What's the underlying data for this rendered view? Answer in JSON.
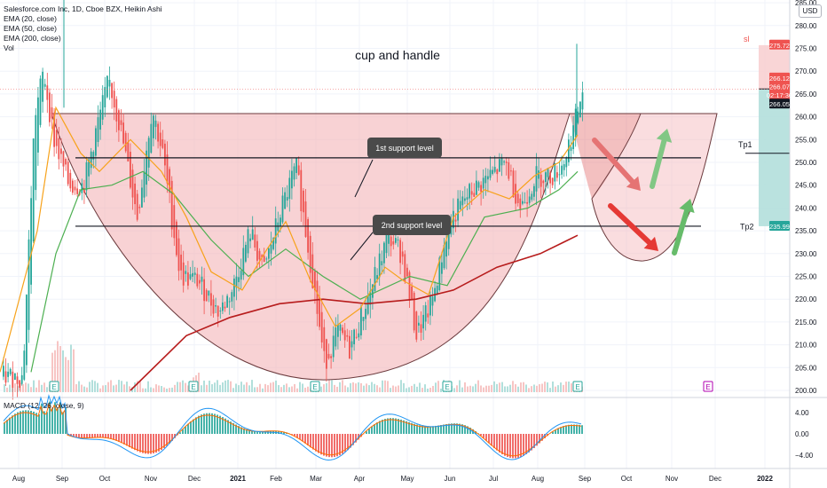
{
  "header": {
    "symbol_line": "Salesforce.com Inc, 1D, Cboe BZX, Heikin Ashi",
    "indicators": [
      "EMA (20, close)",
      "EMA (50, close)",
      "EMA (200, close)",
      "Vol"
    ],
    "currency_button": "USD"
  },
  "annotations": {
    "title": "cup and handle",
    "support1": "1st support level",
    "support2": "2nd support level",
    "sl": "sl",
    "tp1": "Tp1",
    "tp2": "Tp2",
    "earnings_marker": "E"
  },
  "price_tags": {
    "sl": "275.72",
    "last_a": "266.12",
    "last_b": "266.07",
    "countdown": "02:17:36",
    "ema": "266.05",
    "tp2": "235.99"
  },
  "macd": {
    "label": "MACD (12, 26, close, 9)",
    "axis_ticks": [
      "4.00",
      "0.00",
      "−4.00"
    ]
  },
  "colors": {
    "bull": "#26a69a",
    "bear": "#ef5350",
    "ema20": "#f7a21b",
    "ema50": "#4caf50",
    "ema200": "#b71c1c",
    "macd_line": "#2196f3",
    "signal_line": "#ff6d00",
    "cup_fill": "#f4b4b8",
    "profit_zone": "#b2dfdb",
    "loss_zone": "#f8d0d2"
  },
  "chart_data": {
    "type": "candlestick",
    "price_axis": {
      "ylim": [
        200,
        300
      ],
      "ticks": [
        200,
        205,
        210,
        215,
        220,
        225,
        230,
        235,
        240,
        245,
        250,
        255,
        260,
        265,
        270,
        275,
        280,
        285,
        290,
        295,
        300
      ]
    },
    "time_axis": {
      "labels": [
        "Aug",
        "Sep",
        "Oct",
        "Nov",
        "Dec",
        "2021",
        "Feb",
        "Mar",
        "Apr",
        "May",
        "Jun",
        "Jul",
        "Aug",
        "Sep",
        "Oct",
        "Nov",
        "Dec",
        "2022"
      ]
    },
    "levels": {
      "resistance": 272,
      "support_1": 251,
      "support_2": 236,
      "tp1": 252,
      "tp2": 236
    },
    "close_path": [
      {
        "x": "Aug 5, 2020",
        "y": 203
      },
      {
        "x": "Aug 18, 2020",
        "y": 203
      },
      {
        "x": "Aug 26, 2020",
        "y": 260
      },
      {
        "x": "Sep 1, 2020",
        "y": 270
      },
      {
        "x": "Sep 8, 2020",
        "y": 255
      },
      {
        "x": "Sep 18, 2020",
        "y": 245
      },
      {
        "x": "Sep 28, 2020",
        "y": 245
      },
      {
        "x": "Oct 7, 2020",
        "y": 258
      },
      {
        "x": "Oct 15, 2020",
        "y": 268
      },
      {
        "x": "Oct 23, 2020",
        "y": 257
      },
      {
        "x": "Nov 3, 2020",
        "y": 238
      },
      {
        "x": "Nov 13, 2020",
        "y": 262
      },
      {
        "x": "Nov 20, 2020",
        "y": 252
      },
      {
        "x": "Dec 2, 2020",
        "y": 225
      },
      {
        "x": "Dec 14, 2020",
        "y": 224
      },
      {
        "x": "Dec 28, 2020",
        "y": 217
      },
      {
        "x": "Jan 6, 2021",
        "y": 222
      },
      {
        "x": "Jan 18, 2021",
        "y": 235
      },
      {
        "x": "Jan 27, 2021",
        "y": 226
      },
      {
        "x": "Feb 8, 2021",
        "y": 240
      },
      {
        "x": "Feb 18, 2021",
        "y": 249
      },
      {
        "x": "Mar 1, 2021",
        "y": 225
      },
      {
        "x": "Mar 9, 2021",
        "y": 206
      },
      {
        "x": "Mar 18, 2021",
        "y": 213
      },
      {
        "x": "Mar 26, 2021",
        "y": 209
      },
      {
        "x": "Apr 9, 2021",
        "y": 222
      },
      {
        "x": "Apr 21, 2021",
        "y": 234
      },
      {
        "x": "Apr 30, 2021",
        "y": 230
      },
      {
        "x": "May 10, 2021",
        "y": 212
      },
      {
        "x": "May 20, 2021",
        "y": 219
      },
      {
        "x": "Jun 1, 2021",
        "y": 237
      },
      {
        "x": "Jun 14, 2021",
        "y": 243
      },
      {
        "x": "Jun 28, 2021",
        "y": 247
      },
      {
        "x": "Jul 9, 2021",
        "y": 250
      },
      {
        "x": "Jul 19, 2021",
        "y": 240
      },
      {
        "x": "Jul 29, 2021",
        "y": 247
      },
      {
        "x": "Aug 9, 2021",
        "y": 247
      },
      {
        "x": "Aug 17, 2021",
        "y": 250
      },
      {
        "x": "Aug 24, 2021",
        "y": 258
      },
      {
        "x": "Aug 30, 2021",
        "y": 266
      }
    ],
    "ema20": [
      [
        0,
        204
      ],
      [
        0.06,
        235
      ],
      [
        0.09,
        262
      ],
      [
        0.13,
        252
      ],
      [
        0.16,
        248
      ],
      [
        0.21,
        255
      ],
      [
        0.26,
        248
      ],
      [
        0.3,
        238
      ],
      [
        0.34,
        226
      ],
      [
        0.39,
        222
      ],
      [
        0.43,
        231
      ],
      [
        0.46,
        237
      ],
      [
        0.5,
        224
      ],
      [
        0.54,
        214
      ],
      [
        0.58,
        218
      ],
      [
        0.62,
        227
      ],
      [
        0.65,
        224
      ],
      [
        0.69,
        221
      ],
      [
        0.73,
        238
      ],
      [
        0.78,
        244
      ],
      [
        0.82,
        242
      ],
      [
        0.86,
        247
      ],
      [
        0.9,
        250
      ],
      [
        0.93,
        256
      ]
    ],
    "ema50": [
      [
        0.05,
        204
      ],
      [
        0.09,
        230
      ],
      [
        0.13,
        244
      ],
      [
        0.18,
        245
      ],
      [
        0.23,
        248
      ],
      [
        0.28,
        243
      ],
      [
        0.34,
        233
      ],
      [
        0.4,
        225
      ],
      [
        0.46,
        231
      ],
      [
        0.52,
        225
      ],
      [
        0.58,
        220
      ],
      [
        0.66,
        225
      ],
      [
        0.72,
        223
      ],
      [
        0.78,
        238
      ],
      [
        0.85,
        240
      ],
      [
        0.9,
        244
      ],
      [
        0.93,
        248
      ]
    ],
    "ema200": [
      [
        0.21,
        200
      ],
      [
        0.3,
        212
      ],
      [
        0.37,
        216
      ],
      [
        0.45,
        219
      ],
      [
        0.52,
        220
      ],
      [
        0.59,
        219
      ],
      [
        0.67,
        220
      ],
      [
        0.73,
        222
      ],
      [
        0.8,
        227
      ],
      [
        0.87,
        230
      ],
      [
        0.93,
        234
      ]
    ],
    "macd": {
      "ylim": [
        -6,
        6
      ]
    }
  }
}
